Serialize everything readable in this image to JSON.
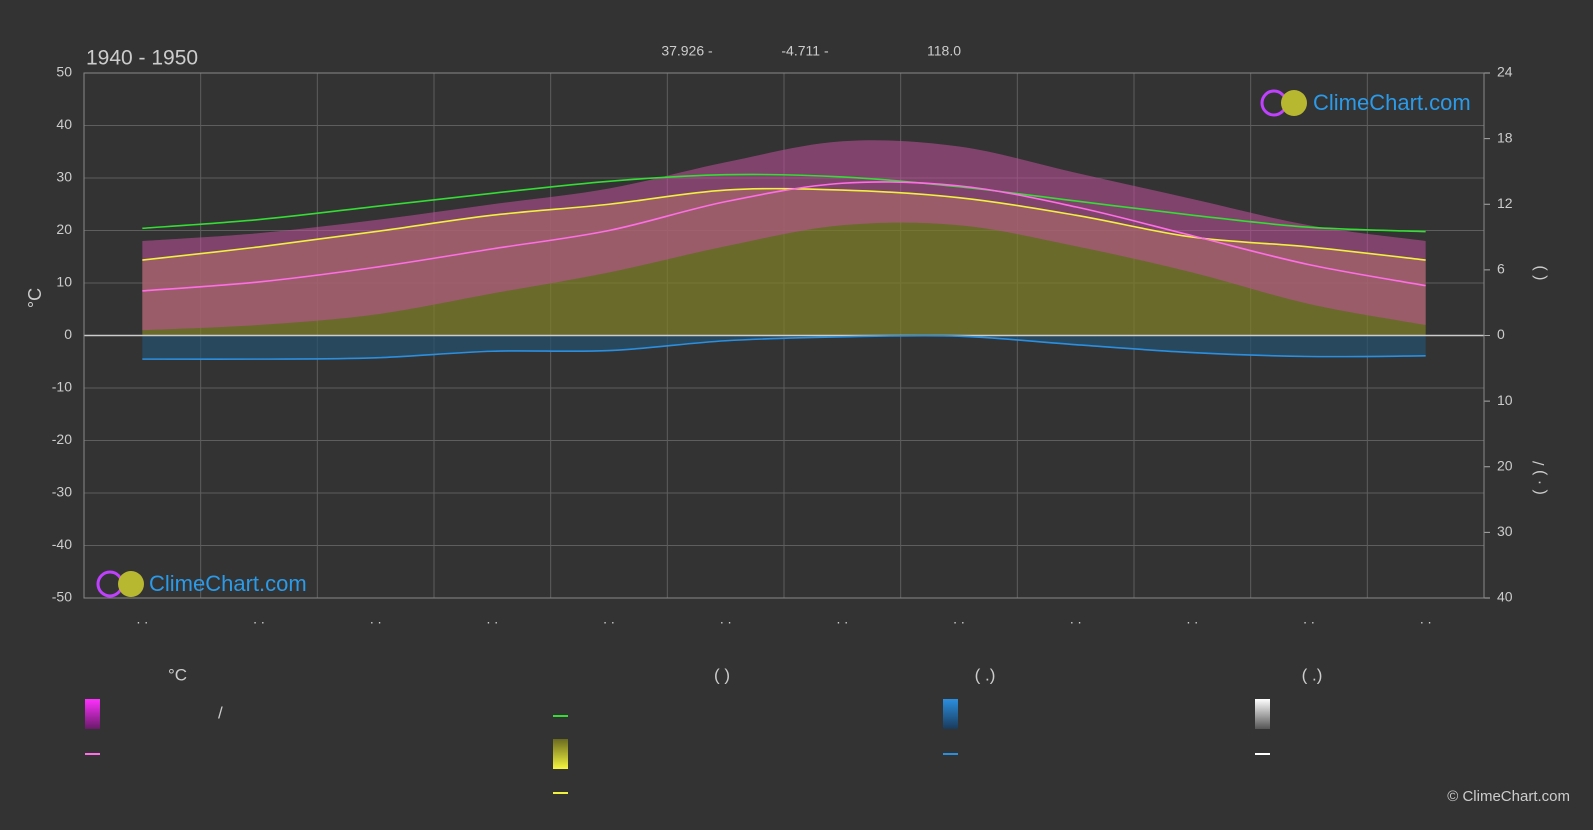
{
  "chart_data": {
    "type": "climate",
    "title": "1940 - 1950",
    "header": [
      "37.926 -",
      "-4.711 -",
      "118.0"
    ],
    "logo": "ClimeChart.com",
    "copyright": "© ClimeChart.com",
    "y_label": "°C",
    "y2_label": "(          )",
    "y3_label": "( · )         /",
    "legend_texts": [
      "°C",
      "(           )",
      "(   .)",
      "(   .)",
      "/"
    ],
    "categories": [
      ". .",
      ". .",
      ". .",
      ". .",
      ". .",
      ". .",
      ". .",
      ". .",
      ". .",
      ". .",
      ". .",
      ". ."
    ],
    "ylim": [
      -50,
      50
    ],
    "yticks": [
      -50,
      -40,
      -30,
      -20,
      -10,
      0,
      10,
      20,
      30,
      40,
      50
    ],
    "y2lim": [
      0,
      24
    ],
    "y2ticks": [
      0,
      6,
      12,
      18,
      24
    ],
    "y3lim": [
      0,
      40
    ],
    "y3ticks": [
      10,
      20,
      30,
      40
    ],
    "grid": true,
    "bands": [
      {
        "color": "#c0509a",
        "values": [
          18,
          19.5,
          22,
          25,
          28,
          33,
          37,
          36,
          31,
          26,
          21,
          18
        ],
        "low": [
          1,
          2,
          4,
          8,
          12,
          17,
          21,
          21,
          17,
          12,
          6,
          2
        ]
      }
    ],
    "series": [
      {
        "color": "#7e7e2a",
        "fill": "#7e7e2a",
        "axis": "y2",
        "values": [
          6.9,
          8.1,
          9.5,
          11.0,
          12.0,
          13.3,
          13.3,
          12.6,
          11.0,
          9.0,
          8.1,
          6.9
        ]
      },
      {
        "color": "#2a6a9a",
        "fill": "#25506e",
        "axis": "y3",
        "values": [
          3.6,
          3.6,
          3.4,
          2.4,
          2.3,
          0.8,
          0.2,
          0.1,
          1.4,
          2.6,
          3.2,
          3.1
        ]
      },
      {
        "color": "#33dd33",
        "axis": "y2",
        "values": [
          9.8,
          10.6,
          11.8,
          13.0,
          14.1,
          14.7,
          14.5,
          13.6,
          12.3,
          11.0,
          9.9,
          9.5
        ]
      },
      {
        "color": "#f0f040",
        "axis": "y2",
        "values": [
          6.9,
          8.1,
          9.5,
          11.0,
          12.0,
          13.3,
          13.3,
          12.6,
          11.0,
          9.0,
          8.1,
          6.9
        ]
      },
      {
        "color": "#ff6ee6",
        "axis": "y",
        "values": [
          8.5,
          10.2,
          13,
          16.5,
          20,
          25.5,
          29,
          28.5,
          24.5,
          19,
          13.5,
          9.5
        ]
      },
      {
        "color": "#2b8fe0",
        "axis": "y3",
        "values": [
          3.6,
          3.6,
          3.4,
          2.4,
          2.3,
          0.8,
          0.2,
          0.1,
          1.4,
          2.6,
          3.2,
          3.1
        ]
      }
    ]
  }
}
